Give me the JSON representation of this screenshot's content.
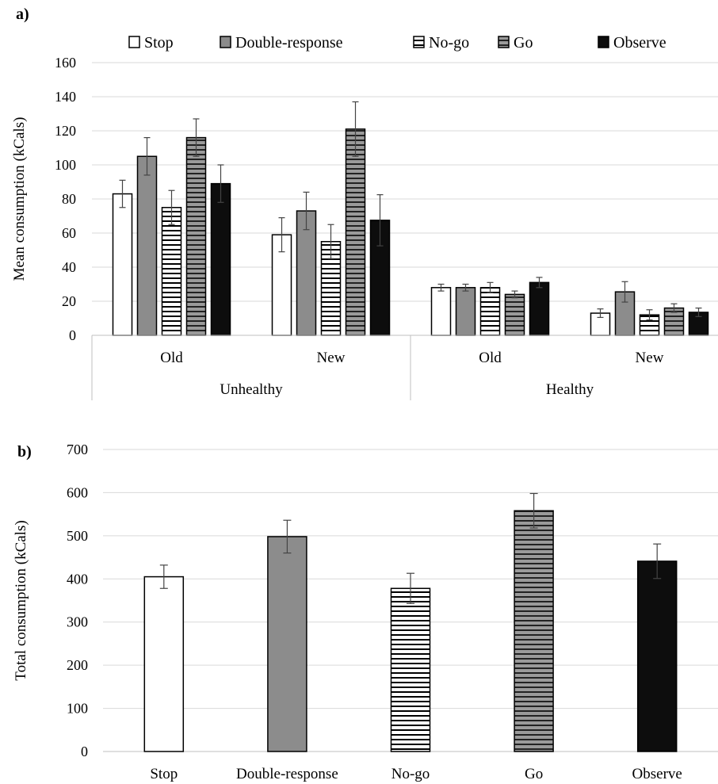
{
  "figure": {
    "panel_a_label": "a)",
    "panel_b_label": "b)"
  },
  "chart_data": [
    {
      "type": "bar",
      "panel": "a)",
      "ylabel": "Mean consumption (kCals)",
      "ylim": [
        0,
        160
      ],
      "yticks": [
        0,
        20,
        40,
        60,
        80,
        100,
        120,
        140,
        160
      ],
      "grid": true,
      "legend": "top",
      "groups": [
        {
          "label": "Unhealthy",
          "subgroups": [
            "Old",
            "New"
          ]
        },
        {
          "label": "Healthy",
          "subgroups": [
            "Old",
            "New"
          ]
        }
      ],
      "categories": [
        "Old",
        "New",
        "Old",
        "New"
      ],
      "series": [
        {
          "name": "Stop",
          "pattern": "white",
          "values": [
            83,
            59,
            28,
            13
          ],
          "errors": [
            8,
            10,
            2,
            2.5
          ]
        },
        {
          "name": "Double-response",
          "pattern": "gray",
          "values": [
            105,
            73,
            28,
            25.5
          ],
          "errors": [
            11,
            11,
            2,
            6
          ]
        },
        {
          "name": "No-go",
          "pattern": "horizontal-lines",
          "values": [
            75,
            55,
            28,
            12
          ],
          "errors": [
            10,
            10,
            3,
            3
          ]
        },
        {
          "name": "Go",
          "pattern": "gray-horizontal-lines",
          "values": [
            116,
            121,
            24,
            16
          ],
          "errors": [
            11,
            16,
            2,
            2.5
          ]
        },
        {
          "name": "Observe",
          "pattern": "black",
          "values": [
            89,
            67.5,
            31,
            13.5
          ],
          "errors": [
            11,
            15,
            3,
            2.5
          ]
        }
      ]
    },
    {
      "type": "bar",
      "panel": "b)",
      "ylabel": "Total consumption (kCals)",
      "ylim": [
        0,
        700
      ],
      "yticks": [
        0,
        100,
        200,
        300,
        400,
        500,
        600,
        700
      ],
      "grid": true,
      "categories": [
        "Stop",
        "Double-response",
        "No-go",
        "Go",
        "Observe"
      ],
      "patterns": [
        "white",
        "gray",
        "horizontal-lines",
        "gray-horizontal-lines",
        "black"
      ],
      "values": [
        405,
        498,
        378,
        558,
        441
      ],
      "errors": [
        27,
        38,
        35,
        40,
        40
      ]
    }
  ]
}
